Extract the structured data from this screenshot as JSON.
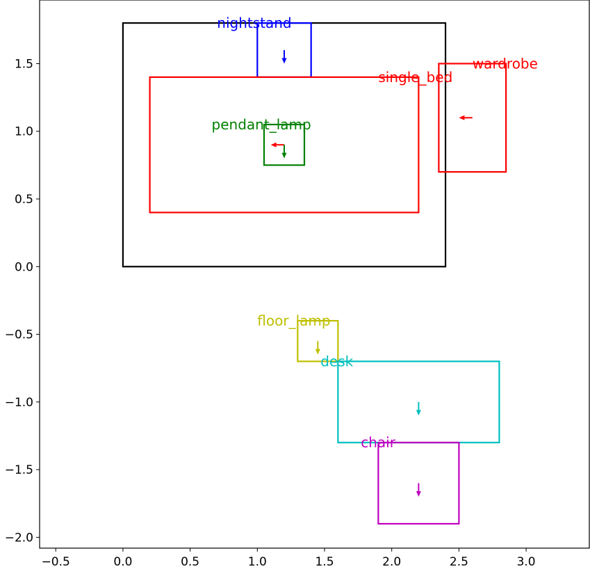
{
  "chart_data": {
    "type": "scatter",
    "title": "",
    "xlabel": "",
    "ylabel": "",
    "xlim": [
      -0.62,
      3.47
    ],
    "ylim": [
      -2.08,
      1.97
    ],
    "grid": false,
    "x_ticks": [
      -0.5,
      0.0,
      0.5,
      1.0,
      1.5,
      2.0,
      2.5,
      3.0
    ],
    "x_tick_labels": [
      "−0.5",
      "0.0",
      "0.5",
      "1.0",
      "1.5",
      "2.0",
      "2.5",
      "3.0"
    ],
    "y_ticks": [
      -2.0,
      -1.5,
      -1.0,
      -0.5,
      0.0,
      0.5,
      1.0,
      1.5
    ],
    "y_tick_labels": [
      "−2.0",
      "−1.5",
      "−1.0",
      "−0.5",
      "0.0",
      "0.5",
      "1.0",
      "1.5"
    ],
    "room": {
      "x0": 0.0,
      "y0": 0.0,
      "x1": 2.4,
      "y1": 1.8,
      "color": "#000000"
    },
    "objects": [
      {
        "name": "nightstand",
        "x0": 1.0,
        "y0": 1.4,
        "x1": 1.4,
        "y1": 1.8,
        "color": "#0000ff",
        "arrows": [
          {
            "x": 1.2,
            "y": 1.6,
            "dx": 0.0,
            "dy": -0.1
          }
        ],
        "label_x": 0.7,
        "label_y": 1.8
      },
      {
        "name": "single_bed",
        "x0": 0.2,
        "y0": 0.4,
        "x1": 2.2,
        "y1": 1.4,
        "color": "#ff0000",
        "arrows": [
          {
            "x": 1.2,
            "y": 0.9,
            "dx": -0.1,
            "dy": 0.0
          }
        ],
        "label_x": 1.9,
        "label_y": 1.4
      },
      {
        "name": "wardrobe",
        "x0": 2.35,
        "y0": 0.7,
        "x1": 2.85,
        "y1": 1.5,
        "color": "#ff0000",
        "arrows": [
          {
            "x": 2.6,
            "y": 1.1,
            "dx": -0.1,
            "dy": 0.0
          }
        ],
        "label_x": 2.6,
        "label_y": 1.5
      },
      {
        "name": "pendant_lamp",
        "x0": 1.05,
        "y0": 0.75,
        "x1": 1.35,
        "y1": 1.05,
        "color": "#008000",
        "arrows": [
          {
            "x": 1.2,
            "y": 0.9,
            "dx": 0.0,
            "dy": -0.1
          }
        ],
        "label_x": 0.66,
        "label_y": 1.05
      },
      {
        "name": "floor_lamp",
        "x0": 1.3,
        "y0": -0.7,
        "x1": 1.6,
        "y1": -0.4,
        "color": "#bfbf00",
        "arrows": [
          {
            "x": 1.45,
            "y": -0.55,
            "dx": 0.0,
            "dy": -0.1
          }
        ],
        "label_x": 1.0,
        "label_y": -0.4
      },
      {
        "name": "desk",
        "x0": 1.6,
        "y0": -1.3,
        "x1": 2.8,
        "y1": -0.7,
        "color": "#00bfbf",
        "arrows": [
          {
            "x": 2.2,
            "y": -1.0,
            "dx": 0.0,
            "dy": -0.1
          }
        ],
        "label_x": 1.47,
        "label_y": -0.7
      },
      {
        "name": "chair",
        "x0": 1.9,
        "y0": -1.9,
        "x1": 2.5,
        "y1": -1.3,
        "color": "#bf00bf",
        "arrows": [
          {
            "x": 2.2,
            "y": -1.6,
            "dx": 0.0,
            "dy": -0.1
          }
        ],
        "label_x": 1.77,
        "label_y": -1.3
      }
    ]
  }
}
